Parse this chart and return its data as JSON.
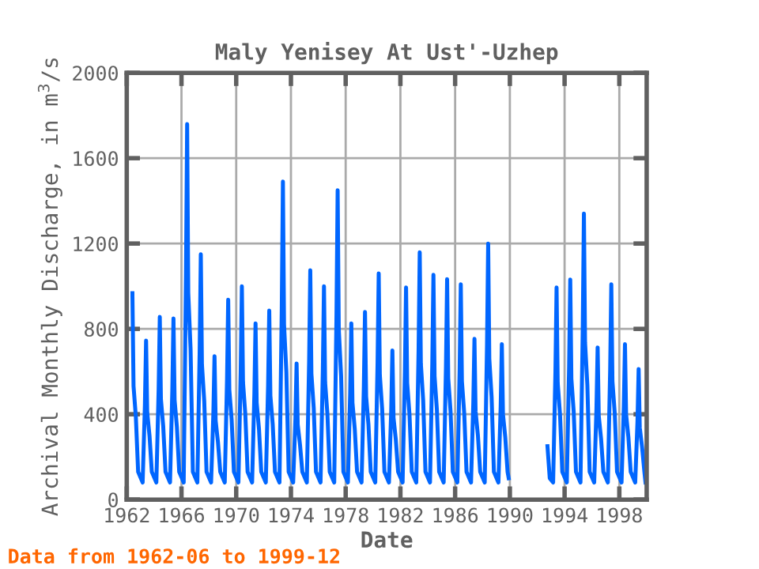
{
  "chart_data": {
    "type": "line",
    "title": "Maly Yenisey At Ust'-Uzhep",
    "xlabel": "Date",
    "ylabel": "Archival Monthly Discharge, in m$^{3}$/s",
    "annotations": [
      "Data from 1962-06 to 1999-12"
    ],
    "x": [
      "1962-06",
      "1962-07",
      "1962-09",
      "1962-11",
      "1963-03",
      "1963-05",
      "1963-06",
      "1963-07",
      "1963-09",
      "1963-11",
      "1964-03",
      "1964-05",
      "1964-06",
      "1964-07",
      "1964-09",
      "1964-11",
      "1965-03",
      "1965-05",
      "1965-06",
      "1965-07",
      "1965-09",
      "1965-11",
      "1966-03",
      "1966-05",
      "1966-06",
      "1966-07",
      "1966-09",
      "1966-11",
      "1967-03",
      "1967-05",
      "1967-06",
      "1967-07",
      "1967-09",
      "1967-11",
      "1968-03",
      "1968-05",
      "1968-06",
      "1968-07",
      "1968-09",
      "1968-11",
      "1969-03",
      "1969-05",
      "1969-06",
      "1969-07",
      "1969-09",
      "1969-11",
      "1970-03",
      "1970-05",
      "1970-06",
      "1970-07",
      "1970-09",
      "1970-11",
      "1971-03",
      "1971-05",
      "1971-06",
      "1971-07",
      "1971-09",
      "1971-11",
      "1972-03",
      "1972-05",
      "1972-06",
      "1972-07",
      "1972-09",
      "1972-11",
      "1973-03",
      "1973-05",
      "1973-06",
      "1973-07",
      "1973-09",
      "1973-11",
      "1974-03",
      "1974-05",
      "1974-06",
      "1974-07",
      "1974-09",
      "1974-11",
      "1975-03",
      "1975-05",
      "1975-06",
      "1975-07",
      "1975-09",
      "1975-11",
      "1976-03",
      "1976-05",
      "1976-06",
      "1976-07",
      "1976-09",
      "1976-11",
      "1977-03",
      "1977-05",
      "1977-06",
      "1977-07",
      "1977-09",
      "1977-11",
      "1978-03",
      "1978-05",
      "1978-06",
      "1978-07",
      "1978-09",
      "1978-11",
      "1979-03",
      "1979-05",
      "1979-06",
      "1979-07",
      "1979-09",
      "1979-11",
      "1980-03",
      "1980-05",
      "1980-06",
      "1980-07",
      "1980-09",
      "1980-11",
      "1981-03",
      "1981-05",
      "1981-06",
      "1981-07",
      "1981-09",
      "1981-11",
      "1982-03",
      "1982-05",
      "1982-06",
      "1982-07",
      "1982-09",
      "1982-11",
      "1983-03",
      "1983-05",
      "1983-06",
      "1983-07",
      "1983-09",
      "1983-11",
      "1984-03",
      "1984-05",
      "1984-06",
      "1984-07",
      "1984-09",
      "1984-11",
      "1985-03",
      "1985-05",
      "1985-06",
      "1985-07",
      "1985-09",
      "1985-11",
      "1986-03",
      "1986-05",
      "1986-06",
      "1986-07",
      "1986-09",
      "1986-11",
      "1987-03",
      "1987-05",
      "1987-06",
      "1987-07",
      "1987-09",
      "1987-11",
      "1988-03",
      "1988-05",
      "1988-06",
      "1988-07",
      "1988-09",
      "1988-11",
      "1989-03",
      "1989-05",
      "1989-06",
      "1989-07",
      "1989-09",
      "1989-11",
      "1989-12",
      "1991-01",
      "1992-10",
      "1992-12",
      "1993-03",
      "1993-05",
      "1993-06",
      "1993-07",
      "1993-09",
      "1993-11",
      "1994-03",
      "1994-05",
      "1994-06",
      "1994-07",
      "1994-09",
      "1994-11",
      "1995-03",
      "1995-05",
      "1995-06",
      "1995-07",
      "1995-09",
      "1995-11",
      "1996-03",
      "1996-05",
      "1996-06",
      "1996-07",
      "1996-09",
      "1996-11",
      "1997-03",
      "1997-05",
      "1997-06",
      "1997-07",
      "1997-09",
      "1997-11",
      "1998-03",
      "1998-05",
      "1998-06",
      "1998-07",
      "1998-09",
      "1998-11",
      "1999-03",
      "1999-05",
      "1999-06",
      "1999-07",
      "1999-09",
      "1999-11",
      "1999-12"
    ],
    "series": [
      {
        "color": "#0066ff",
        "values": [
          967,
          532,
          387,
          130,
          80,
          447,
          745,
          410,
          298,
          130,
          80,
          514,
          856,
          471,
          342,
          130,
          80,
          509,
          849,
          467,
          340,
          130,
          80,
          1056,
          1760,
          968,
          704,
          130,
          80,
          690,
          1150,
          633,
          460,
          130,
          80,
          403,
          672,
          370,
          269,
          130,
          80,
          562,
          937,
          515,
          375,
          130,
          80,
          600,
          1000,
          550,
          400,
          130,
          80,
          496,
          826,
          454,
          330,
          130,
          80,
          532,
          886,
          487,
          354,
          130,
          80,
          894,
          1490,
          820,
          596,
          130,
          80,
          383,
          638,
          351,
          255,
          130,
          80,
          645,
          1075,
          591,
          430,
          130,
          80,
          600,
          1000,
          550,
          400,
          130,
          80,
          870,
          1450,
          798,
          580,
          130,
          80,
          496,
          826,
          454,
          330,
          130,
          80,
          527,
          879,
          483,
          352,
          130,
          80,
          636,
          1060,
          583,
          424,
          130,
          80,
          419,
          699,
          384,
          280,
          130,
          80,
          596,
          994,
          547,
          398,
          130,
          80,
          695,
          1159,
          637,
          464,
          130,
          80,
          632,
          1053,
          579,
          421,
          130,
          80,
          620,
          1033,
          568,
          413,
          130,
          80,
          605,
          1009,
          555,
          404,
          130,
          80,
          452,
          753,
          414,
          301,
          130,
          80,
          720,
          1200,
          660,
          480,
          130,
          80,
          437,
          728,
          400,
          291,
          130,
          100,
          null,
          250,
          100,
          80,
          596,
          994,
          547,
          398,
          130,
          80,
          619,
          1031,
          567,
          412,
          130,
          80,
          804,
          1340,
          737,
          536,
          130,
          80,
          428,
          713,
          392,
          285,
          130,
          80,
          605,
          1009,
          555,
          404,
          130,
          80,
          437,
          728,
          400,
          291,
          130,
          80,
          367,
          612,
          337,
          245,
          130,
          80
        ]
      }
    ],
    "xlim": [
      "1962-01-01",
      "2000-01-01"
    ],
    "xticks": [
      "1962",
      "1966",
      "1970",
      "1974",
      "1978",
      "1982",
      "1986",
      "1990",
      "1994",
      "1998"
    ],
    "ylim": [
      0,
      2000
    ],
    "yticks": [
      0,
      400,
      800,
      1200,
      1600,
      2000
    ],
    "grid": true,
    "marker": "none",
    "line_style": "solid"
  }
}
